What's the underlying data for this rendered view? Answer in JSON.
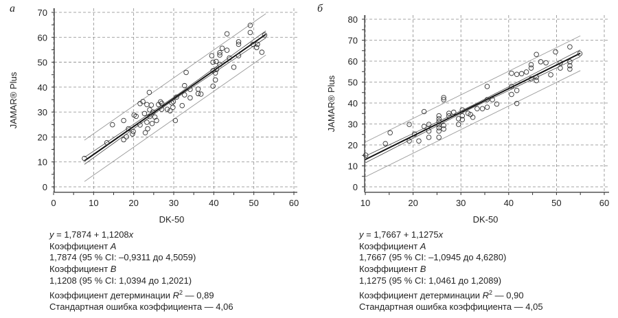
{
  "chart_data": [
    {
      "type": "scatter",
      "panel_label": "а",
      "xlabel": "DK-50",
      "ylabel": "JAMAR® Plus",
      "xlim": [
        0,
        60
      ],
      "ylim": [
        0,
        70
      ],
      "xticks": [
        0,
        10,
        20,
        30,
        40,
        50,
        60
      ],
      "yticks": [
        0,
        10,
        20,
        30,
        40,
        50,
        60,
        70
      ],
      "grid": true,
      "regression": {
        "intercept": 1.7874,
        "slope": 1.1208,
        "x_range": [
          7.7,
          53.0
        ],
        "confidence_halfwidth": 1.4,
        "prediction_halfwidth": 8.3
      },
      "points": [
        [
          7.7,
          11.4
        ],
        [
          13.3,
          17.7
        ],
        [
          14.7,
          24.9
        ],
        [
          17.5,
          26.6
        ],
        [
          17.5,
          18.9
        ],
        [
          18.2,
          20.1
        ],
        [
          18.7,
          23.3
        ],
        [
          19.7,
          21.2
        ],
        [
          19.9,
          22.2
        ],
        [
          20.1,
          28.8
        ],
        [
          20.6,
          28.3
        ],
        [
          21.6,
          24.8
        ],
        [
          21.6,
          33.4
        ],
        [
          22.3,
          34.2
        ],
        [
          22.7,
          29.4
        ],
        [
          22.9,
          21.7
        ],
        [
          23.3,
          33.0
        ],
        [
          23.3,
          25.9
        ],
        [
          23.5,
          23.3
        ],
        [
          23.9,
          37.9
        ],
        [
          24.0,
          30.9
        ],
        [
          24.0,
          28.2
        ],
        [
          24.4,
          32.8
        ],
        [
          24.6,
          25.4
        ],
        [
          24.8,
          30.0
        ],
        [
          25.3,
          28.0
        ],
        [
          25.7,
          26.6
        ],
        [
          26.2,
          33.0
        ],
        [
          26.7,
          34.1
        ],
        [
          27.0,
          31.1
        ],
        [
          27.0,
          33.5
        ],
        [
          28.4,
          31.1
        ],
        [
          29.1,
          30.5
        ],
        [
          29.5,
          33.7
        ],
        [
          29.8,
          31.9
        ],
        [
          29.9,
          34.2
        ],
        [
          30.4,
          26.6
        ],
        [
          30.7,
          36.0
        ],
        [
          32.1,
          32.6
        ],
        [
          32.7,
          40.6
        ],
        [
          32.7,
          36.9
        ],
        [
          33.1,
          45.9
        ],
        [
          34.1,
          39.1
        ],
        [
          34.1,
          35.7
        ],
        [
          36.1,
          39.2
        ],
        [
          36.1,
          37.4
        ],
        [
          36.8,
          37.2
        ],
        [
          39.5,
          52.6
        ],
        [
          39.8,
          50.0
        ],
        [
          39.8,
          40.4
        ],
        [
          39.8,
          46.6
        ],
        [
          40.4,
          45.7
        ],
        [
          40.4,
          42.9
        ],
        [
          40.6,
          50.3
        ],
        [
          40.7,
          47.1
        ],
        [
          41.5,
          49.1
        ],
        [
          41.5,
          53.8
        ],
        [
          41.5,
          52.9
        ],
        [
          42.1,
          55.6
        ],
        [
          43.3,
          54.8
        ],
        [
          43.3,
          61.4
        ],
        [
          43.9,
          51.7
        ],
        [
          45.0,
          48.0
        ],
        [
          46.2,
          52.6
        ],
        [
          46.2,
          58.2
        ],
        [
          46.2,
          57.2
        ],
        [
          49.1,
          64.8
        ],
        [
          49.1,
          61.9
        ],
        [
          49.8,
          57.2
        ],
        [
          50.7,
          55.9
        ],
        [
          50.9,
          57.2
        ],
        [
          52.0,
          54.0
        ],
        [
          52.7,
          60.9
        ]
      ],
      "stats": {
        "equation": {
          "y": "y",
          "body": " = 1,7874 + 1,1208",
          "x": "x"
        },
        "coef_a_label": "Коэффициент ",
        "coef_a_sym": "A",
        "coef_a_value": "1,7874 (95 % CI: –0,9311 до 4,5059)",
        "coef_b_label": "Коэффициент ",
        "coef_b_sym": "B",
        "coef_b_value": "1,1208 (95 % CI: 1,0394 до 1,2021)",
        "r2_label": "Коэффициент детерминации ",
        "r2_sym": "R",
        "r2_sup": "2",
        "r2_value": " — 0,89",
        "std_error": "Стандартная ошибка коэффициента — 4,06"
      }
    },
    {
      "type": "scatter",
      "panel_label": "б",
      "xlabel": "DK-50",
      "ylabel": "JAMAR® Plus",
      "xlim": [
        10,
        60
      ],
      "ylim": [
        0,
        80
      ],
      "xticks": [
        10,
        20,
        30,
        40,
        50,
        60
      ],
      "yticks": [
        0,
        10,
        20,
        30,
        40,
        50,
        60,
        70,
        80
      ],
      "grid": true,
      "regression": {
        "intercept": 1.7667,
        "slope": 1.1275,
        "x_range": [
          10.0,
          55.0
        ],
        "confidence_halfwidth": 1.6,
        "prediction_halfwidth": 8.3
      },
      "points": [
        [
          10.1,
          15.1
        ],
        [
          14.2,
          20.6
        ],
        [
          15.2,
          25.8
        ],
        [
          19.2,
          29.8
        ],
        [
          19.2,
          21.9
        ],
        [
          20.3,
          25.2
        ],
        [
          21.2,
          21.9
        ],
        [
          22.3,
          35.9
        ],
        [
          22.3,
          28.8
        ],
        [
          23.3,
          29.8
        ],
        [
          23.3,
          26.6
        ],
        [
          23.3,
          23.6
        ],
        [
          25.4,
          33.9
        ],
        [
          25.4,
          32.5
        ],
        [
          25.4,
          31.2
        ],
        [
          25.4,
          29.6
        ],
        [
          25.4,
          28.2
        ],
        [
          25.4,
          26.6
        ],
        [
          25.4,
          23.6
        ],
        [
          26.4,
          42.6
        ],
        [
          26.4,
          41.6
        ],
        [
          26.4,
          29.3
        ],
        [
          26.4,
          27.6
        ],
        [
          27.5,
          35.1
        ],
        [
          27.5,
          33.9
        ],
        [
          28.5,
          35.6
        ],
        [
          29.5,
          32.5
        ],
        [
          29.5,
          29.8
        ],
        [
          30.3,
          36.7
        ],
        [
          30.3,
          33.9
        ],
        [
          30.3,
          32.1
        ],
        [
          31.5,
          35.1
        ],
        [
          32.0,
          34.5
        ],
        [
          32.5,
          33.2
        ],
        [
          33.4,
          37.3
        ],
        [
          34.5,
          37.3
        ],
        [
          35.5,
          47.9
        ],
        [
          35.5,
          41.6
        ],
        [
          35.5,
          38.0
        ],
        [
          36.6,
          41.6
        ],
        [
          37.5,
          39.5
        ],
        [
          40.6,
          54.2
        ],
        [
          40.6,
          47.9
        ],
        [
          40.6,
          44.1
        ],
        [
          41.7,
          53.7
        ],
        [
          41.7,
          46.0
        ],
        [
          41.7,
          39.8
        ],
        [
          42.7,
          54.0
        ],
        [
          43.7,
          54.8
        ],
        [
          44.7,
          58.3
        ],
        [
          44.7,
          56.7
        ],
        [
          44.7,
          51.5
        ],
        [
          45.8,
          63.2
        ],
        [
          45.8,
          52.3
        ],
        [
          45.8,
          50.7
        ],
        [
          46.7,
          59.7
        ],
        [
          47.8,
          59.2
        ],
        [
          48.8,
          53.5
        ],
        [
          49.8,
          64.4
        ],
        [
          50.8,
          56.7
        ],
        [
          50.8,
          59.2
        ],
        [
          52.8,
          66.8
        ],
        [
          52.8,
          59.7
        ],
        [
          52.8,
          57.8
        ],
        [
          52.8,
          56.2
        ],
        [
          54.9,
          63.6
        ]
      ],
      "stats": {
        "equation": {
          "y": "y",
          "body": " = 1,7667 + 1,1275",
          "x": "x"
        },
        "coef_a_label": "Коэффициент ",
        "coef_a_sym": "A",
        "coef_a_value": "1,7667 (95 % CI: –1,0945 до 4,6280)",
        "coef_b_label": "Коэффициент ",
        "coef_b_sym": "B",
        "coef_b_value": "1,1275 (95 % CI: 1,0461 до 1,2089)",
        "r2_label": "Коэффициент детерминации ",
        "r2_sym": "R",
        "r2_sup": "2",
        "r2_value": " — 0,90",
        "std_error": "Стандартная ошибка коэффициента — 4,05"
      }
    }
  ]
}
